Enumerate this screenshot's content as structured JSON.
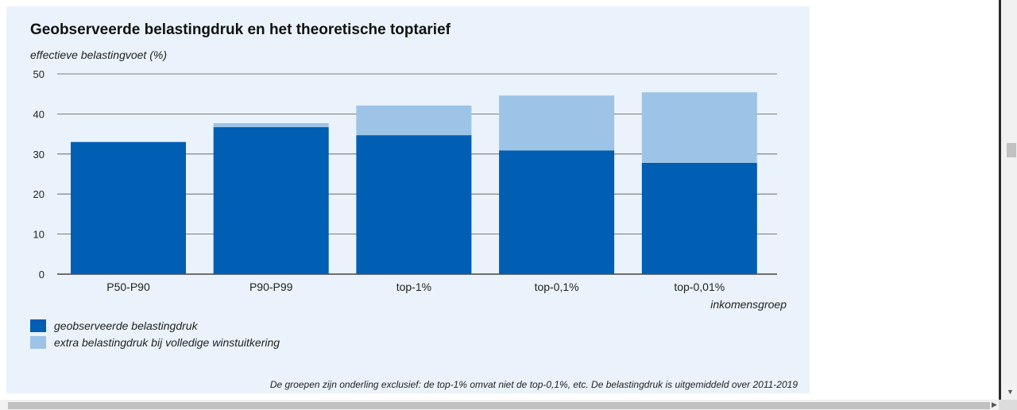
{
  "chart_data": {
    "type": "bar",
    "stacked": true,
    "title": "Geobserveerde belastingdruk en het theoretische toptarief",
    "ylabel": "effectieve belastingvoet (%)",
    "xlabel": "inkomensgroep",
    "ylim": [
      0,
      50
    ],
    "yticks": [
      0,
      10,
      20,
      30,
      40,
      50
    ],
    "grid": true,
    "legend_position": "bottom-left",
    "categories": [
      "P50-P90",
      "P90-P99",
      "top-1%",
      "top-0,1%",
      "top-0,01%"
    ],
    "series": [
      {
        "name": "geobserveerde belastingdruk",
        "color": "#005eb3",
        "values": [
          33.0,
          36.7,
          34.7,
          30.9,
          27.8
        ]
      },
      {
        "name": "extra belastingdruk bij volledige winstuitkering",
        "color": "#9dc3e6",
        "values": [
          0.0,
          1.0,
          7.4,
          13.7,
          17.6
        ]
      }
    ],
    "note": "De groepen zijn onderling exclusief: de top-1% omvat niet de top-0,1%, etc. De belastingdruk is uitgemiddeld over 2011-2019"
  }
}
